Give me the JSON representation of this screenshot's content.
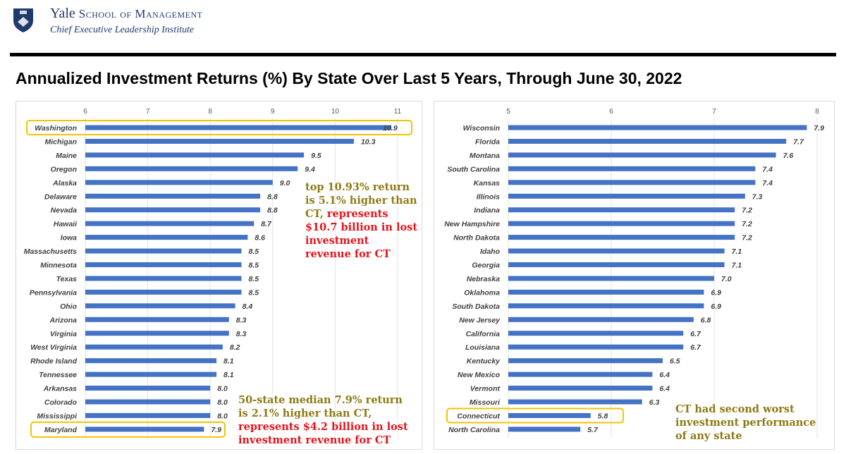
{
  "header": {
    "brand_name": "Yale",
    "brand_school": "School of Management",
    "brand_sub": "Chief Executive Leadership Institute"
  },
  "title": "Annualized Investment Returns (%) By State Over Last 5 Years, Through June 30, 2022",
  "colors": {
    "bar": "#4472c4",
    "highlight": "#f2c400",
    "olive": "#8d7a14",
    "red": "#e4141b"
  },
  "chart_data": [
    {
      "type": "bar",
      "orientation": "horizontal",
      "xlim": [
        6,
        11
      ],
      "ticks": [
        6,
        7,
        8,
        9,
        10,
        11
      ],
      "grid": true,
      "categories": [
        "Washington",
        "Michigan",
        "Maine",
        "Oregon",
        "Alaska",
        "Delaware",
        "Nevada",
        "Hawaii",
        "Iowa",
        "Massachusetts",
        "Minnesota",
        "Texas",
        "Pennsylvania",
        "Ohio",
        "Arizona",
        "Virginia",
        "West Virginia",
        "Rhode Island",
        "Tennessee",
        "Arkansas",
        "Colorado",
        "Mississippi",
        "Maryland"
      ],
      "values": [
        10.9,
        10.3,
        9.5,
        9.4,
        9.0,
        8.8,
        8.8,
        8.7,
        8.6,
        8.5,
        8.5,
        8.5,
        8.5,
        8.4,
        8.3,
        8.3,
        8.2,
        8.1,
        8.1,
        8.0,
        8.0,
        8.0,
        7.9
      ],
      "highlighted": [
        "Washington",
        "Maryland"
      ]
    },
    {
      "type": "bar",
      "orientation": "horizontal",
      "xlim": [
        5,
        8
      ],
      "ticks": [
        5,
        6,
        7,
        8
      ],
      "grid": true,
      "categories": [
        "Wisconsin",
        "Florida",
        "Montana",
        "South Carolina",
        "Kansas",
        "Illinois",
        "Indiana",
        "New Hampshire",
        "North Dakota",
        "Idaho",
        "Georgia",
        "Nebraska",
        "Oklahoma",
        "South Dakota",
        "New Jersey",
        "California",
        "Louisiana",
        "Kentucky",
        "New Mexico",
        "Vermont",
        "Missouri",
        "Connecticut",
        "North Carolina"
      ],
      "values": [
        7.9,
        7.7,
        7.6,
        7.4,
        7.4,
        7.3,
        7.2,
        7.2,
        7.2,
        7.1,
        7.1,
        7.0,
        6.9,
        6.9,
        6.8,
        6.7,
        6.7,
        6.5,
        6.4,
        6.4,
        6.3,
        5.8,
        5.7
      ],
      "highlighted": [
        "Connecticut"
      ]
    }
  ],
  "annotations": {
    "top_olive": "top 10.93% return is 5.1% higher than CT,",
    "top_red": "represents $10.7 billion in lost investment revenue for CT",
    "median_olive": "50-state median 7.9% return is 2.1% higher than CT,",
    "median_red": "represents $4.2 billion in lost investment revenue for CT",
    "ct_olive": "CT had second worst investment performance of any state"
  }
}
